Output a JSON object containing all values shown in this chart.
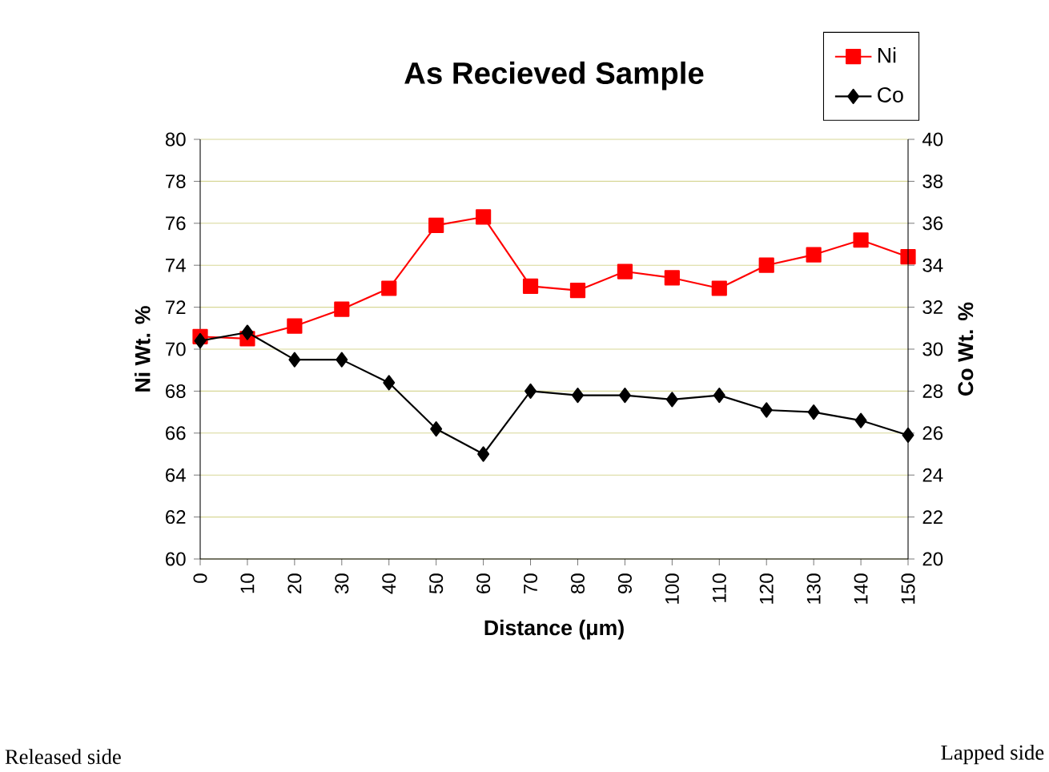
{
  "chart_data": {
    "type": "line",
    "title": "As Recieved Sample",
    "xlabel": "Distance (μm)",
    "ylabel": "Ni Wt. %",
    "y2label": "Co Wt. %",
    "x": [
      0,
      10,
      20,
      30,
      40,
      50,
      60,
      70,
      80,
      90,
      100,
      110,
      120,
      130,
      140,
      150
    ],
    "series": [
      {
        "name": "Ni",
        "color": "#ff0000",
        "marker": "square",
        "values": [
          70.6,
          70.5,
          71.1,
          71.9,
          72.9,
          75.9,
          76.3,
          73.0,
          72.8,
          73.7,
          73.4,
          72.9,
          74.0,
          74.5,
          75.2,
          74.4
        ]
      },
      {
        "name": "Co",
        "color": "#000000",
        "marker": "diamond",
        "axis": "y2",
        "values": [
          30.4,
          30.8,
          29.5,
          29.5,
          28.4,
          26.2,
          25.0,
          28.0,
          27.8,
          27.8,
          27.6,
          27.8,
          27.1,
          27.0,
          26.6,
          25.9
        ]
      }
    ],
    "xlim": [
      0,
      150
    ],
    "xticks": [
      0,
      10,
      20,
      30,
      40,
      50,
      60,
      70,
      80,
      90,
      100,
      110,
      120,
      130,
      140,
      150
    ],
    "ylim": [
      60,
      80
    ],
    "yticks": [
      60,
      62,
      64,
      66,
      68,
      70,
      72,
      74,
      76,
      78,
      80
    ],
    "y2lim": [
      20,
      40
    ],
    "y2ticks": [
      20,
      22,
      24,
      26,
      28,
      30,
      32,
      34,
      36,
      38,
      40
    ],
    "grid": "y",
    "legend": "top right",
    "line_style": "solid",
    "annotations": [
      "Released side",
      "Lapped side"
    ]
  }
}
